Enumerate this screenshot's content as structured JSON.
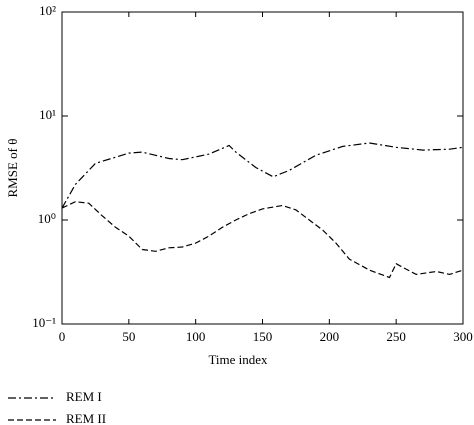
{
  "chart_data": {
    "type": "line",
    "xlabel": "Time index",
    "ylabel": "RMSE of θ",
    "yscale": "log",
    "xlim": [
      0,
      300
    ],
    "xticks": [
      0,
      50,
      100,
      150,
      200,
      250,
      300
    ],
    "ylim": [
      0.1,
      100
    ],
    "yticks": [
      {
        "value": 0.1,
        "label": "10⁻¹"
      },
      {
        "value": 1,
        "label": "10⁰"
      },
      {
        "value": 10,
        "label": "10¹"
      },
      {
        "value": 100,
        "label": "10²"
      }
    ],
    "legend": "below-left",
    "series": [
      {
        "name": "REM I",
        "color": "#000000",
        "linestyle": "-.",
        "x": [
          0,
          10,
          25,
          50,
          60,
          80,
          90,
          110,
          125,
          130,
          145,
          158,
          170,
          190,
          210,
          230,
          250,
          270,
          290,
          300
        ],
        "values": [
          1.3,
          2.2,
          3.5,
          4.4,
          4.5,
          3.9,
          3.8,
          4.3,
          5.2,
          4.5,
          3.2,
          2.6,
          3.0,
          4.2,
          5.1,
          5.5,
          5.0,
          4.7,
          4.8,
          5.0
        ]
      },
      {
        "name": "REM II",
        "color": "#000000",
        "linestyle": "--",
        "x": [
          0,
          10,
          20,
          30,
          40,
          50,
          60,
          70,
          80,
          90,
          100,
          110,
          120,
          130,
          140,
          150,
          165,
          175,
          185,
          195,
          205,
          215,
          230,
          245,
          250,
          255,
          265,
          280,
          290,
          300
        ],
        "values": [
          1.3,
          1.5,
          1.45,
          1.1,
          0.85,
          0.7,
          0.52,
          0.5,
          0.54,
          0.55,
          0.6,
          0.7,
          0.85,
          1.0,
          1.15,
          1.28,
          1.38,
          1.25,
          1.0,
          0.8,
          0.6,
          0.42,
          0.33,
          0.28,
          0.38,
          0.35,
          0.3,
          0.32,
          0.3,
          0.33
        ]
      }
    ]
  }
}
